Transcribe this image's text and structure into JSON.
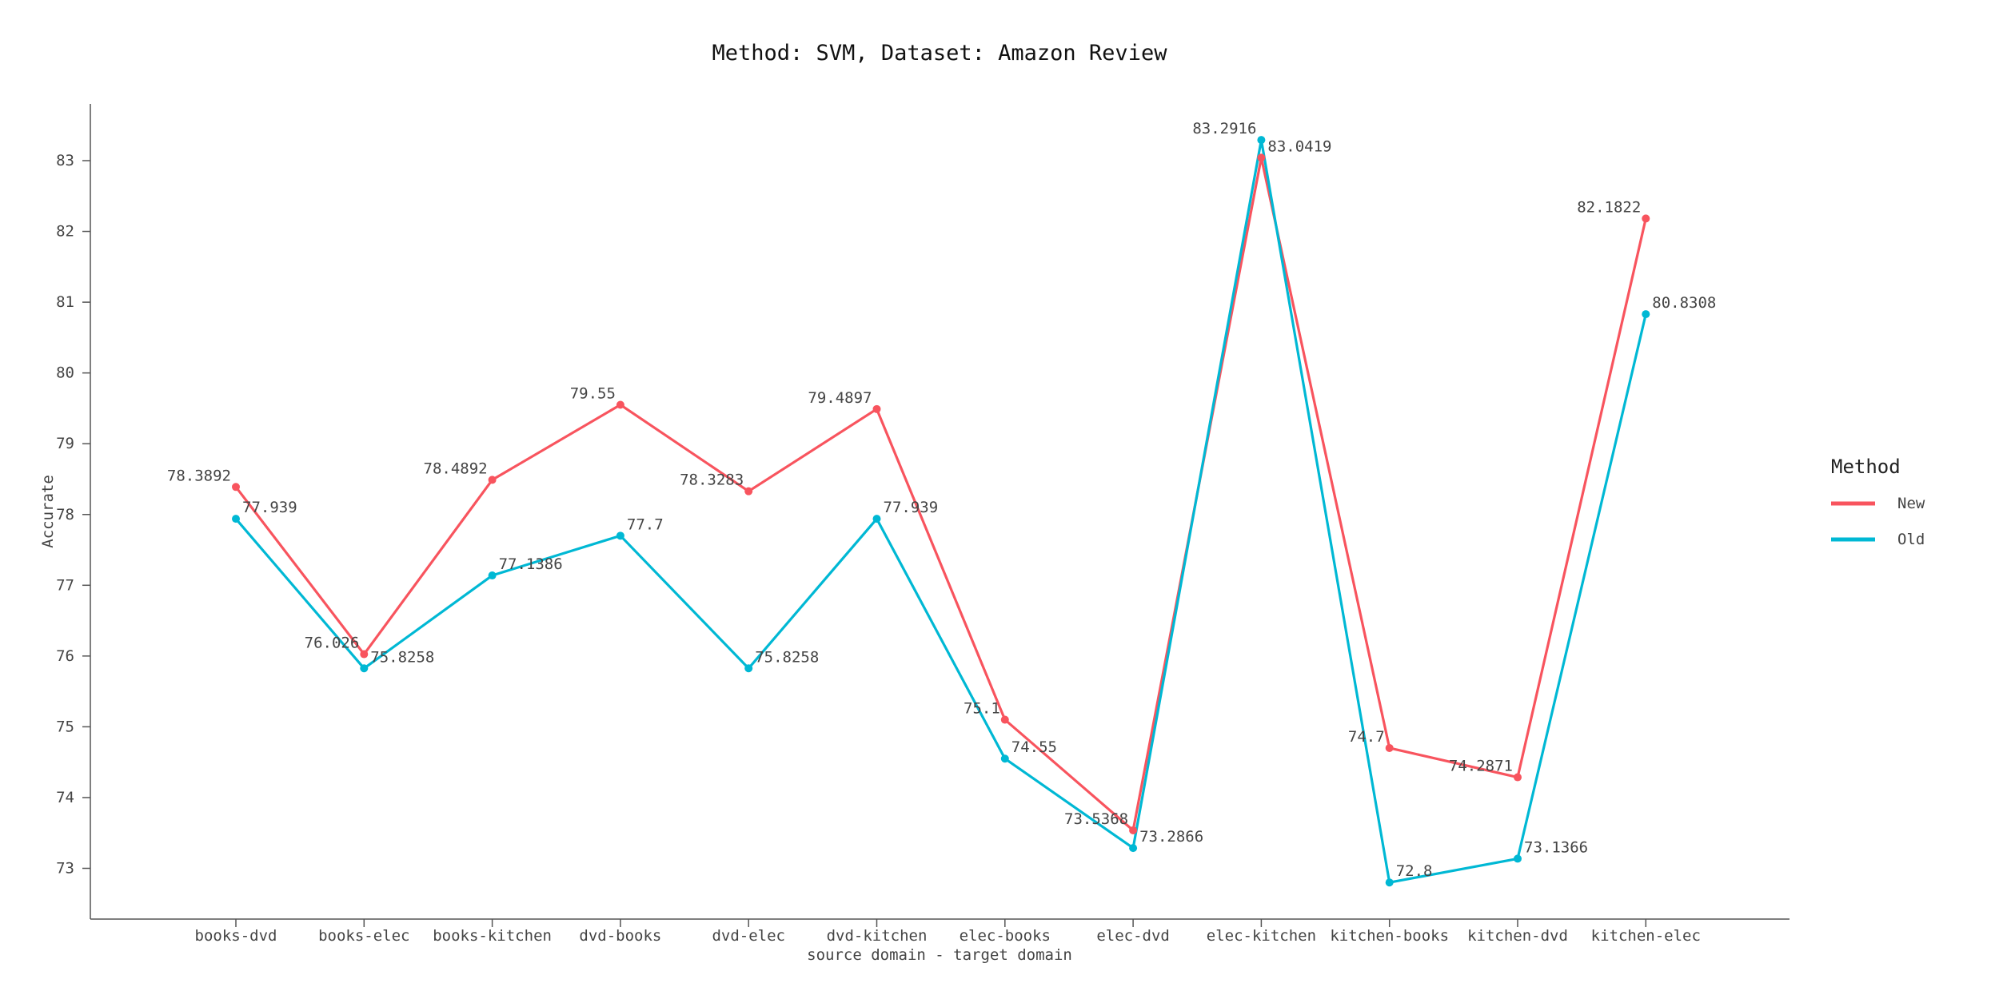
{
  "chart_data": {
    "type": "line",
    "title": "Method: SVM, Dataset: Amazon Review",
    "xlabel": "source domain - target domain",
    "ylabel": "Accurate",
    "categories": [
      "books-dvd",
      "books-elec",
      "books-kitchen",
      "dvd-books",
      "dvd-elec",
      "dvd-kitchen",
      "elec-books",
      "elec-dvd",
      "elec-kitchen",
      "kitchen-books",
      "kitchen-dvd",
      "kitchen-elec"
    ],
    "yticks": [
      "73",
      "74",
      "75",
      "76",
      "77",
      "78",
      "79",
      "80",
      "81",
      "82",
      "83"
    ],
    "ylim": [
      72.3,
      84.0
    ],
    "grid": false,
    "legend_title": "Method",
    "legend_position": "right",
    "series": [
      {
        "name": "New",
        "color": "#f8545e",
        "values": [
          78.3892,
          76.026,
          78.4892,
          79.55,
          78.3283,
          79.4897,
          75.1,
          73.5368,
          83.0419,
          74.7,
          74.2871,
          82.1822
        ],
        "labels": [
          "78.3892",
          "76.026",
          "78.4892",
          "79.55",
          "78.3283",
          "79.4897",
          "75.1",
          "73.5368",
          "83.0419",
          "74.7",
          "74.2871",
          "82.1822"
        ]
      },
      {
        "name": "Old",
        "color": "#00b8d4",
        "values": [
          77.939,
          75.8258,
          77.1386,
          77.7,
          75.8258,
          77.939,
          74.55,
          73.2866,
          83.2916,
          72.8,
          73.1366,
          80.8308
        ],
        "labels": [
          "77.939",
          "75.8258",
          "77.1386",
          "77.7",
          "75.8258",
          "77.939",
          "74.55",
          "73.2866",
          "83.2916",
          "72.8",
          "73.1366",
          "80.8308"
        ]
      }
    ]
  }
}
